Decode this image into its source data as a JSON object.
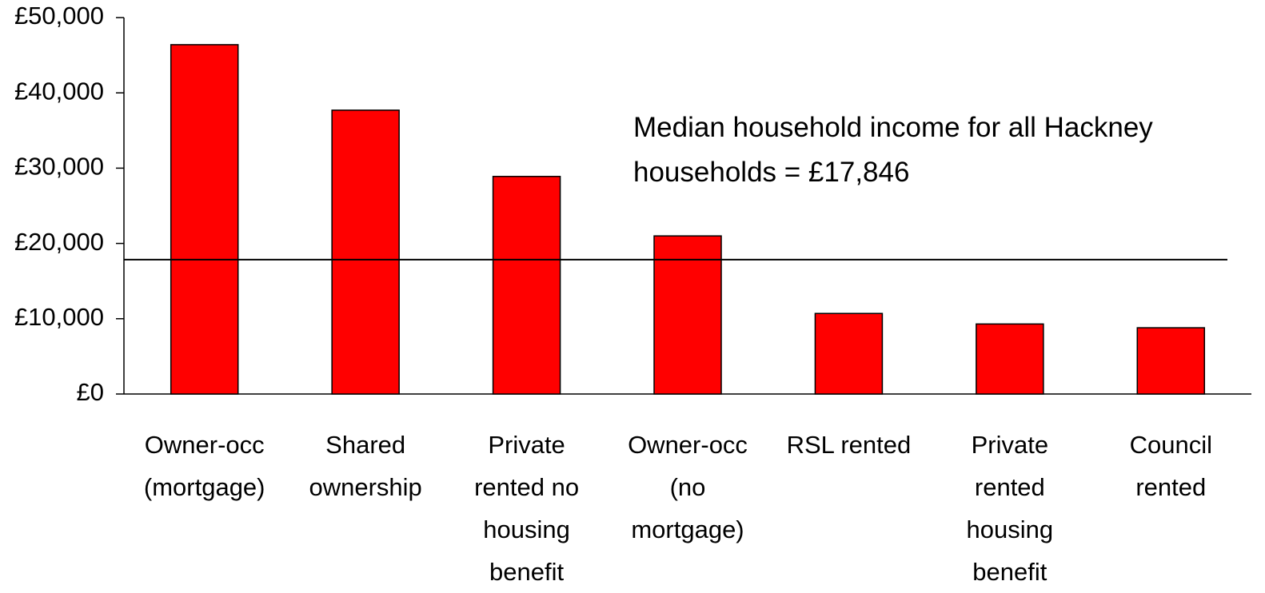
{
  "chart_data": {
    "type": "bar",
    "categories": [
      "Owner-occ (mortgage)",
      "Shared ownership",
      "Private rented no housing benefit",
      "Owner-occ (no mortgage)",
      "RSL rented",
      "Private rented housing benefit",
      "Council rented"
    ],
    "values": [
      46400,
      37700,
      28900,
      21000,
      10700,
      9300,
      8800
    ],
    "color": "#ff0000",
    "ylim": [
      0,
      50000
    ],
    "yticks": [
      {
        "value": 0,
        "label": "£0"
      },
      {
        "value": 10000,
        "label": "£10,000"
      },
      {
        "value": 20000,
        "label": "£20,000"
      },
      {
        "value": 30000,
        "label": "£30,000"
      },
      {
        "value": 40000,
        "label": "£40,000"
      },
      {
        "value": 50000,
        "label": "£50,000"
      }
    ],
    "reference_line": {
      "value": 17846,
      "label": "Median household income for all Hackney households = £17,846"
    }
  }
}
